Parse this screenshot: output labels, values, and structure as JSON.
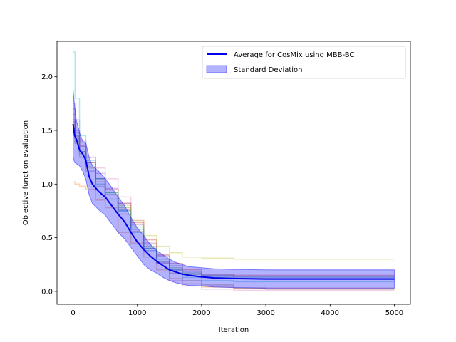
{
  "chart_data": {
    "type": "line",
    "title": "",
    "xlabel": "Iteration",
    "ylabel": "Objective function evaluation",
    "xlim": [
      -250,
      5250
    ],
    "ylim": [
      -0.12,
      2.33
    ],
    "xticks": [
      0,
      1000,
      2000,
      3000,
      4000,
      5000
    ],
    "yticks": [
      0.0,
      0.5,
      1.0,
      1.5,
      2.0
    ],
    "xtick_labels": [
      "0",
      "1000",
      "2000",
      "3000",
      "4000",
      "5000"
    ],
    "ytick_labels": [
      "0.0",
      "0.5",
      "1.0",
      "1.5",
      "2.0"
    ],
    "grid": false,
    "legend_position": "top-right",
    "legend": [
      "Average for CosMix using MBB-BC",
      "Standard Deviation"
    ],
    "average": {
      "name": "Average for CosMix using MBB-BC",
      "color": "#0000ee",
      "x": [
        0,
        25,
        50,
        100,
        150,
        200,
        250,
        300,
        400,
        500,
        600,
        700,
        800,
        900,
        1000,
        1100,
        1200,
        1300,
        1400,
        1500,
        1600,
        1700,
        1800,
        2000,
        2200,
        2500,
        3000,
        3500,
        4000,
        4500,
        5000
      ],
      "y": [
        1.56,
        1.45,
        1.42,
        1.32,
        1.28,
        1.22,
        1.07,
        1.0,
        0.93,
        0.88,
        0.8,
        0.72,
        0.65,
        0.55,
        0.46,
        0.39,
        0.33,
        0.28,
        0.24,
        0.2,
        0.18,
        0.16,
        0.15,
        0.135,
        0.125,
        0.12,
        0.115,
        0.115,
        0.115,
        0.115,
        0.115
      ]
    },
    "std_band": {
      "name": "Standard Deviation",
      "color": "#0000ff",
      "x": [
        0,
        25,
        50,
        100,
        150,
        200,
        250,
        300,
        400,
        500,
        600,
        700,
        800,
        900,
        1000,
        1100,
        1200,
        1300,
        1400,
        1500,
        1600,
        1700,
        1800,
        2000,
        2200,
        2500,
        3000,
        3500,
        4000,
        4500,
        5000
      ],
      "upper": [
        1.88,
        1.72,
        1.6,
        1.48,
        1.4,
        1.38,
        1.25,
        1.17,
        1.12,
        1.05,
        0.97,
        0.88,
        0.8,
        0.69,
        0.59,
        0.52,
        0.44,
        0.38,
        0.34,
        0.3,
        0.27,
        0.25,
        0.23,
        0.22,
        0.21,
        0.205,
        0.2,
        0.2,
        0.2,
        0.2,
        0.2
      ],
      "lower": [
        1.25,
        1.2,
        1.19,
        1.17,
        1.12,
        1.04,
        0.9,
        0.82,
        0.76,
        0.71,
        0.63,
        0.55,
        0.49,
        0.41,
        0.33,
        0.25,
        0.2,
        0.17,
        0.13,
        0.1,
        0.08,
        0.065,
        0.055,
        0.05,
        0.04,
        0.035,
        0.03,
        0.03,
        0.03,
        0.03,
        0.03
      ]
    },
    "runs": [
      {
        "color": "#1f77b4",
        "x": [
          0,
          30,
          100,
          200,
          350,
          500,
          700,
          900,
          1100,
          1300,
          1500,
          1700,
          2000,
          2500,
          3000,
          4000,
          5000
        ],
        "y": [
          1.7,
          1.45,
          1.3,
          1.2,
          1.0,
          0.9,
          0.75,
          0.55,
          0.38,
          0.26,
          0.2,
          0.16,
          0.14,
          0.13,
          0.13,
          0.13,
          0.13
        ]
      },
      {
        "color": "#ff7f0e",
        "x": [
          0,
          30,
          100,
          200,
          350,
          500,
          700,
          900,
          1100,
          1300,
          1500,
          1700,
          2000,
          2500,
          3000,
          4000,
          5000
        ],
        "y": [
          1.02,
          1.0,
          0.98,
          0.95,
          0.85,
          0.78,
          0.55,
          0.45,
          0.32,
          0.2,
          0.12,
          0.07,
          0.04,
          0.03,
          0.03,
          0.03,
          0.03
        ]
      },
      {
        "color": "#2ca02c",
        "x": [
          0,
          30,
          100,
          200,
          350,
          500,
          700,
          900,
          1100,
          1300,
          1500,
          1700,
          2000,
          2500,
          3000,
          4000,
          5000
        ],
        "y": [
          1.55,
          1.42,
          1.3,
          1.18,
          1.05,
          0.92,
          0.78,
          0.6,
          0.42,
          0.3,
          0.22,
          0.17,
          0.15,
          0.14,
          0.14,
          0.14,
          0.14
        ]
      },
      {
        "color": "#d62728",
        "x": [
          0,
          30,
          100,
          200,
          350,
          500,
          700,
          900,
          1100,
          1300,
          1500,
          1700,
          2000,
          2500,
          3000,
          4000,
          5000
        ],
        "y": [
          1.6,
          1.48,
          1.35,
          1.2,
          1.05,
          0.95,
          0.82,
          0.64,
          0.48,
          0.34,
          0.26,
          0.2,
          0.16,
          0.15,
          0.15,
          0.15,
          0.15
        ]
      },
      {
        "color": "#9467bd",
        "x": [
          0,
          30,
          100,
          200,
          350,
          500,
          700,
          900,
          1100,
          1300,
          1500,
          1700,
          2000,
          2500,
          3000,
          4000,
          5000
        ],
        "y": [
          1.65,
          1.5,
          1.36,
          1.25,
          1.1,
          0.96,
          0.82,
          0.62,
          0.45,
          0.33,
          0.24,
          0.18,
          0.15,
          0.14,
          0.14,
          0.14,
          0.14
        ]
      },
      {
        "color": "#8c564b",
        "x": [
          0,
          30,
          100,
          200,
          350,
          500,
          700,
          900,
          1100,
          1300,
          1500,
          1700,
          2000,
          2500,
          3000,
          4000,
          5000
        ],
        "y": [
          1.58,
          1.44,
          1.3,
          1.16,
          1.02,
          0.9,
          0.76,
          0.58,
          0.4,
          0.27,
          0.17,
          0.1,
          0.06,
          0.03,
          0.02,
          0.02,
          0.02
        ]
      },
      {
        "color": "#e377c2",
        "x": [
          0,
          30,
          100,
          200,
          350,
          500,
          700,
          900,
          1100,
          1300,
          1500,
          1700,
          2000,
          2500,
          3000,
          4000,
          5000
        ],
        "y": [
          1.75,
          1.6,
          1.4,
          1.25,
          1.15,
          1.05,
          0.88,
          0.66,
          0.44,
          0.26,
          0.1,
          0.05,
          0.02,
          0.01,
          0.01,
          0.01,
          0.01
        ]
      },
      {
        "color": "#7f7f7f",
        "x": [
          0,
          30,
          100,
          200,
          350,
          500,
          700,
          900,
          1100,
          1300,
          1500,
          1700,
          2000,
          2500,
          3000,
          4000,
          5000
        ],
        "y": [
          1.5,
          1.38,
          1.25,
          1.12,
          0.98,
          0.86,
          0.72,
          0.56,
          0.4,
          0.28,
          0.2,
          0.16,
          0.13,
          0.12,
          0.12,
          0.12,
          0.12
        ]
      },
      {
        "color": "#bcbd22",
        "x": [
          0,
          30,
          100,
          200,
          350,
          500,
          700,
          900,
          1100,
          1300,
          1500,
          1700,
          2000,
          2500,
          3000,
          4000,
          5000
        ],
        "y": [
          1.48,
          1.4,
          1.28,
          1.15,
          1.02,
          0.92,
          0.8,
          0.66,
          0.52,
          0.42,
          0.36,
          0.32,
          0.31,
          0.3,
          0.3,
          0.3,
          0.3
        ]
      },
      {
        "color": "#17becf",
        "x": [
          0,
          30,
          100,
          200,
          350,
          500,
          700,
          900,
          1100,
          1300,
          1500,
          1700,
          2000,
          2500,
          3000,
          4000,
          5000
        ],
        "y": [
          2.23,
          1.8,
          1.45,
          1.22,
          1.05,
          0.92,
          0.75,
          0.58,
          0.4,
          0.28,
          0.19,
          0.13,
          0.1,
          0.09,
          0.09,
          0.09,
          0.09
        ]
      }
    ]
  }
}
